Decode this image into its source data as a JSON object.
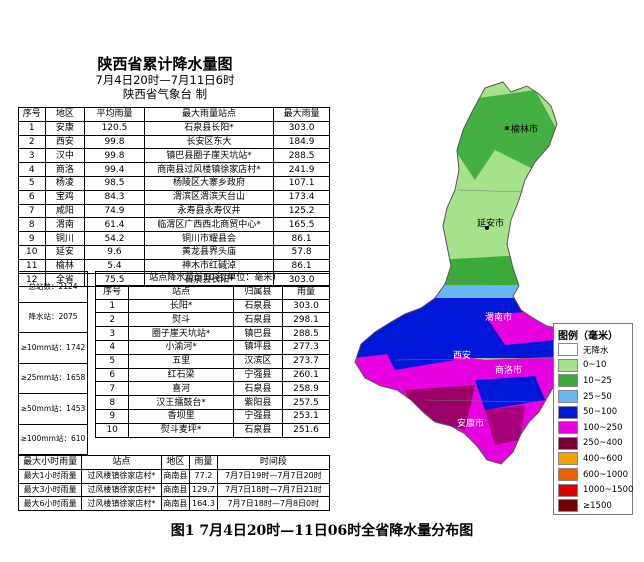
{
  "title": "陕西省累计降水量图",
  "subtitle": "7月4日20时—7月11日6时",
  "issuer": "陕西省气象台  制",
  "region_table": {
    "headers": [
      "序号",
      "地区",
      "平均雨量",
      "最大雨量站点",
      "最大雨量"
    ],
    "rows": [
      [
        "1",
        "安康",
        "120.5",
        "石泉县长阳*",
        "303.0"
      ],
      [
        "2",
        "西安",
        "99.8",
        "长安区东大",
        "184.9"
      ],
      [
        "3",
        "汉中",
        "99.8",
        "镇巴县圈子崖天坑站*",
        "288.5"
      ],
      [
        "4",
        "商洛",
        "99.4",
        "商南县过风楼镇徐家店村*",
        "241.9"
      ],
      [
        "5",
        "杨凌",
        "98.5",
        "杨陵区大寨乡政府",
        "107.1"
      ],
      [
        "6",
        "宝鸡",
        "84.3",
        "渭滨区渭滨天台山",
        "173.4"
      ],
      [
        "7",
        "咸阳",
        "74.9",
        "永寿县永寿仪井",
        "125.2"
      ],
      [
        "8",
        "渭南",
        "61.4",
        "临渭区广西西北商贸中心*",
        "165.5"
      ],
      [
        "9",
        "铜川",
        "54.2",
        "铜川市耀县会",
        "86.1"
      ],
      [
        "10",
        "延安",
        "9.6",
        "黄龙县界头庙",
        "57.8"
      ],
      [
        "11",
        "榆林",
        "5.4",
        "神木市红碱淖",
        "86.1"
      ],
      [
        "12",
        "全省",
        "75.5",
        "石泉县长阳*",
        "303.0"
      ]
    ]
  },
  "station_stats": [
    "总站数：2124",
    "降水站：2075",
    "≥10mm站：1742",
    "≥25mm站：1658",
    "≥50mm站：1453",
    "≥100mm站：610"
  ],
  "top10": {
    "title": "站点降水量前10名(单位：毫米)",
    "headers": [
      "序号",
      "站点",
      "归属县",
      "雨量"
    ],
    "rows": [
      [
        "1",
        "长阳*",
        "石泉县",
        "303.0"
      ],
      [
        "2",
        "熨斗",
        "石泉县",
        "298.1"
      ],
      [
        "3",
        "圈子崖天坑站*",
        "镇巴县",
        "288.5"
      ],
      [
        "4",
        "小渝河*",
        "镇坪县",
        "277.3"
      ],
      [
        "5",
        "五里",
        "汉滨区",
        "273.7"
      ],
      [
        "6",
        "红石梁",
        "宁强县",
        "260.1"
      ],
      [
        "7",
        "喜河",
        "石泉县",
        "258.9"
      ],
      [
        "8",
        "汉王擂鼓台*",
        "紫阳县",
        "257.5"
      ],
      [
        "9",
        "香坝里",
        "宁强县",
        "253.1"
      ],
      [
        "10",
        "熨斗麦坪*",
        "石泉县",
        "251.6"
      ]
    ]
  },
  "hourly_table": {
    "headers": [
      "最大小时雨量",
      "站点",
      "地区",
      "雨量",
      "时间段"
    ],
    "rows": [
      [
        "最大1小时雨量",
        "过风楼镇徐家店村*",
        "商南县",
        "77.2",
        "7月7日19时—7月7日20时"
      ],
      [
        "最大3小时雨量",
        "过风楼镇徐家店村*",
        "商南县",
        "129.7",
        "7月7日18时—7月7日21时"
      ],
      [
        "最大6小时雨量",
        "过风楼镇徐家店村*",
        "商南县",
        "164.3",
        "7月7日18时—7月8日0时"
      ]
    ]
  },
  "map_labels": {
    "yulin": "榆林市",
    "yanan": "延安市",
    "weinan": "渭南市",
    "xian": "西安",
    "shangluo": "商洛市",
    "ankang": "安康市"
  },
  "legend": {
    "title": "图例（毫米）",
    "items": [
      {
        "label": "无降水",
        "color": "#ffffff"
      },
      {
        "label": "0~10",
        "color": "#a6e28b"
      },
      {
        "label": "10~25",
        "color": "#3aaa3a"
      },
      {
        "label": "25~50",
        "color": "#66b8f0"
      },
      {
        "label": "50~100",
        "color": "#0016d8"
      },
      {
        "label": "100~250",
        "color": "#e800e0"
      },
      {
        "label": "250~400",
        "color": "#7a0036"
      },
      {
        "label": "400~600",
        "color": "#f0a000"
      },
      {
        "label": "600~1000",
        "color": "#f06000"
      },
      {
        "label": "1000~1500",
        "color": "#e00000"
      },
      {
        "label": "≥1500",
        "color": "#700000"
      }
    ]
  },
  "caption": "图1  7月4日20时—11日06时全省降水量分布图"
}
